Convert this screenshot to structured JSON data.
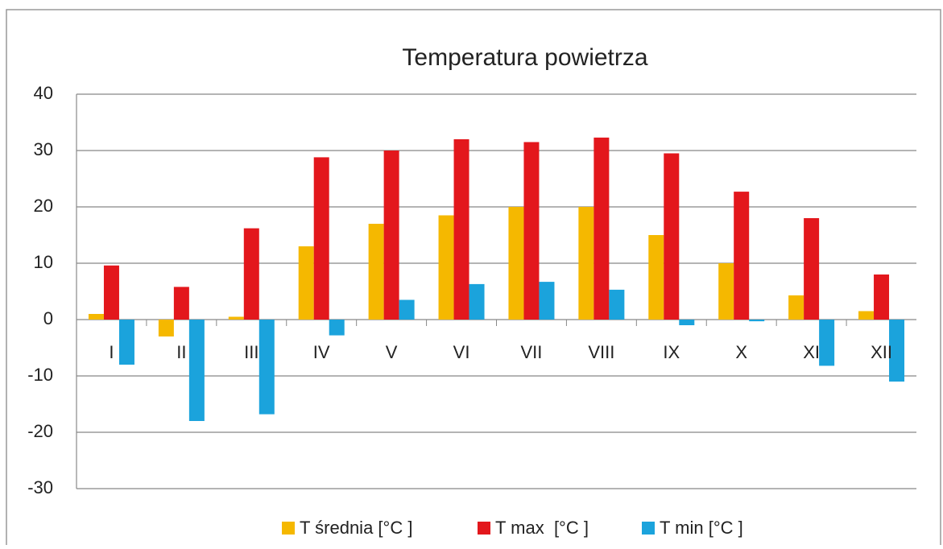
{
  "chart_data": {
    "type": "bar",
    "title": "Temperatura powietrza",
    "categories": [
      "I",
      "II",
      "III",
      "IV",
      "V",
      "VI",
      "VII",
      "VIII",
      "IX",
      "X",
      "XI",
      "XII"
    ],
    "series": [
      {
        "name": "T średnia [°C ]",
        "color": "#f5b800",
        "values": [
          1,
          -3,
          0.5,
          13,
          17,
          18.5,
          20,
          20,
          15,
          10,
          4.3,
          1.5
        ]
      },
      {
        "name": "T max  [°C ]",
        "color": "#e3171c",
        "values": [
          9.6,
          5.8,
          16.2,
          28.8,
          30,
          32,
          31.5,
          32.3,
          29.5,
          22.7,
          18,
          8
        ]
      },
      {
        "name": "T min [°C ]",
        "color": "#1ba3dc",
        "values": [
          -8,
          -18,
          -16.8,
          -2.8,
          3.5,
          6.3,
          6.7,
          5.3,
          -1,
          -0.3,
          -8.2,
          -11
        ]
      }
    ],
    "ylim": [
      -30,
      40
    ],
    "yticks": [
      -30,
      -20,
      -10,
      0,
      10,
      20,
      30,
      40
    ],
    "grid": true,
    "legend": "bottom"
  }
}
